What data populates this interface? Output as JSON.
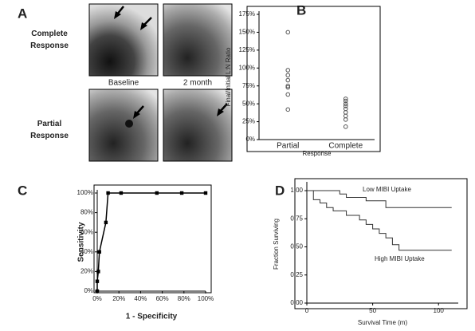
{
  "panel_a": {
    "letter": "A",
    "row_labels": [
      "Complete\nResponse",
      "Partial\nResponse"
    ],
    "column_labels": [
      "Baseline",
      "2 month"
    ]
  },
  "chart_data": [
    {
      "type": "strip",
      "letter": "B",
      "y_label": "Final/Initial L:N Ratio",
      "x_label": "Response",
      "categories": [
        "Partial",
        "Complete"
      ],
      "values": [
        [
          150,
          97,
          90,
          83,
          75,
          73,
          63,
          42
        ],
        [
          57,
          54,
          50,
          47,
          43,
          38,
          33,
          28,
          18
        ]
      ],
      "color": "#555555",
      "ylim": [
        0,
        175
      ],
      "yticks": [
        {
          "value": 0,
          "label": "0%"
        },
        {
          "value": 25,
          "label": "25%"
        },
        {
          "value": 50,
          "label": "50%"
        },
        {
          "value": 75,
          "label": "75%"
        },
        {
          "value": 100,
          "label": "100%"
        },
        {
          "value": 125,
          "label": "125%"
        },
        {
          "value": 150,
          "label": "150%"
        },
        {
          "value": 175,
          "label": "175%"
        }
      ]
    },
    {
      "type": "roc",
      "letter": "C",
      "y_label": "Sensitivity",
      "x_label": "1 - Specificity",
      "x": [
        0,
        0,
        1,
        2,
        8,
        10,
        22,
        55,
        78,
        100
      ],
      "values": [
        0,
        10,
        20,
        40,
        70,
        100,
        100,
        100,
        100,
        100
      ],
      "color": "#000000",
      "xlim": [
        0,
        100
      ],
      "ylim": [
        0,
        100
      ],
      "xticks": [
        {
          "value": 0,
          "label": "0%"
        },
        {
          "value": 20,
          "label": "20%"
        },
        {
          "value": 40,
          "label": "40%"
        },
        {
          "value": 60,
          "label": "60%"
        },
        {
          "value": 80,
          "label": "80%"
        },
        {
          "value": 100,
          "label": "100%"
        }
      ],
      "yticks": [
        {
          "value": 0,
          "label": "0%"
        },
        {
          "value": 20,
          "label": "20%"
        },
        {
          "value": 40,
          "label": "40%"
        },
        {
          "value": 60,
          "label": "60%"
        },
        {
          "value": 80,
          "label": "80%"
        },
        {
          "value": 100,
          "label": "100%"
        }
      ]
    },
    {
      "type": "step",
      "letter": "D",
      "y_label": "Fraction Surviving",
      "x_label": "Survival Time (m)",
      "series": [
        {
          "name": "Low MIBI Uptake",
          "color": "#333333",
          "x": [
            0,
            20,
            25,
            30,
            45,
            60,
            110
          ],
          "values": [
            1,
            1,
            0.97,
            0.94,
            0.91,
            0.85,
            0.85
          ]
        },
        {
          "name": "High MIBI Uptake",
          "color": "#333333",
          "x": [
            0,
            5,
            10,
            15,
            20,
            30,
            40,
            45,
            50,
            55,
            60,
            65,
            70,
            110
          ],
          "values": [
            1,
            0.92,
            0.89,
            0.85,
            0.82,
            0.78,
            0.74,
            0.7,
            0.66,
            0.62,
            0.58,
            0.52,
            0.47,
            0.47
          ]
        }
      ],
      "xlim": [
        0,
        115
      ],
      "ylim": [
        0,
        1.05
      ],
      "xticks": [
        0,
        50,
        100
      ],
      "yticks": [
        {
          "value": 0,
          "label": "0.00"
        },
        {
          "value": 0.25,
          "label": "0.25"
        },
        {
          "value": 0.5,
          "label": "0.50"
        },
        {
          "value": 0.75,
          "label": "0.75"
        },
        {
          "value": 1,
          "label": "1.00"
        }
      ]
    }
  ]
}
